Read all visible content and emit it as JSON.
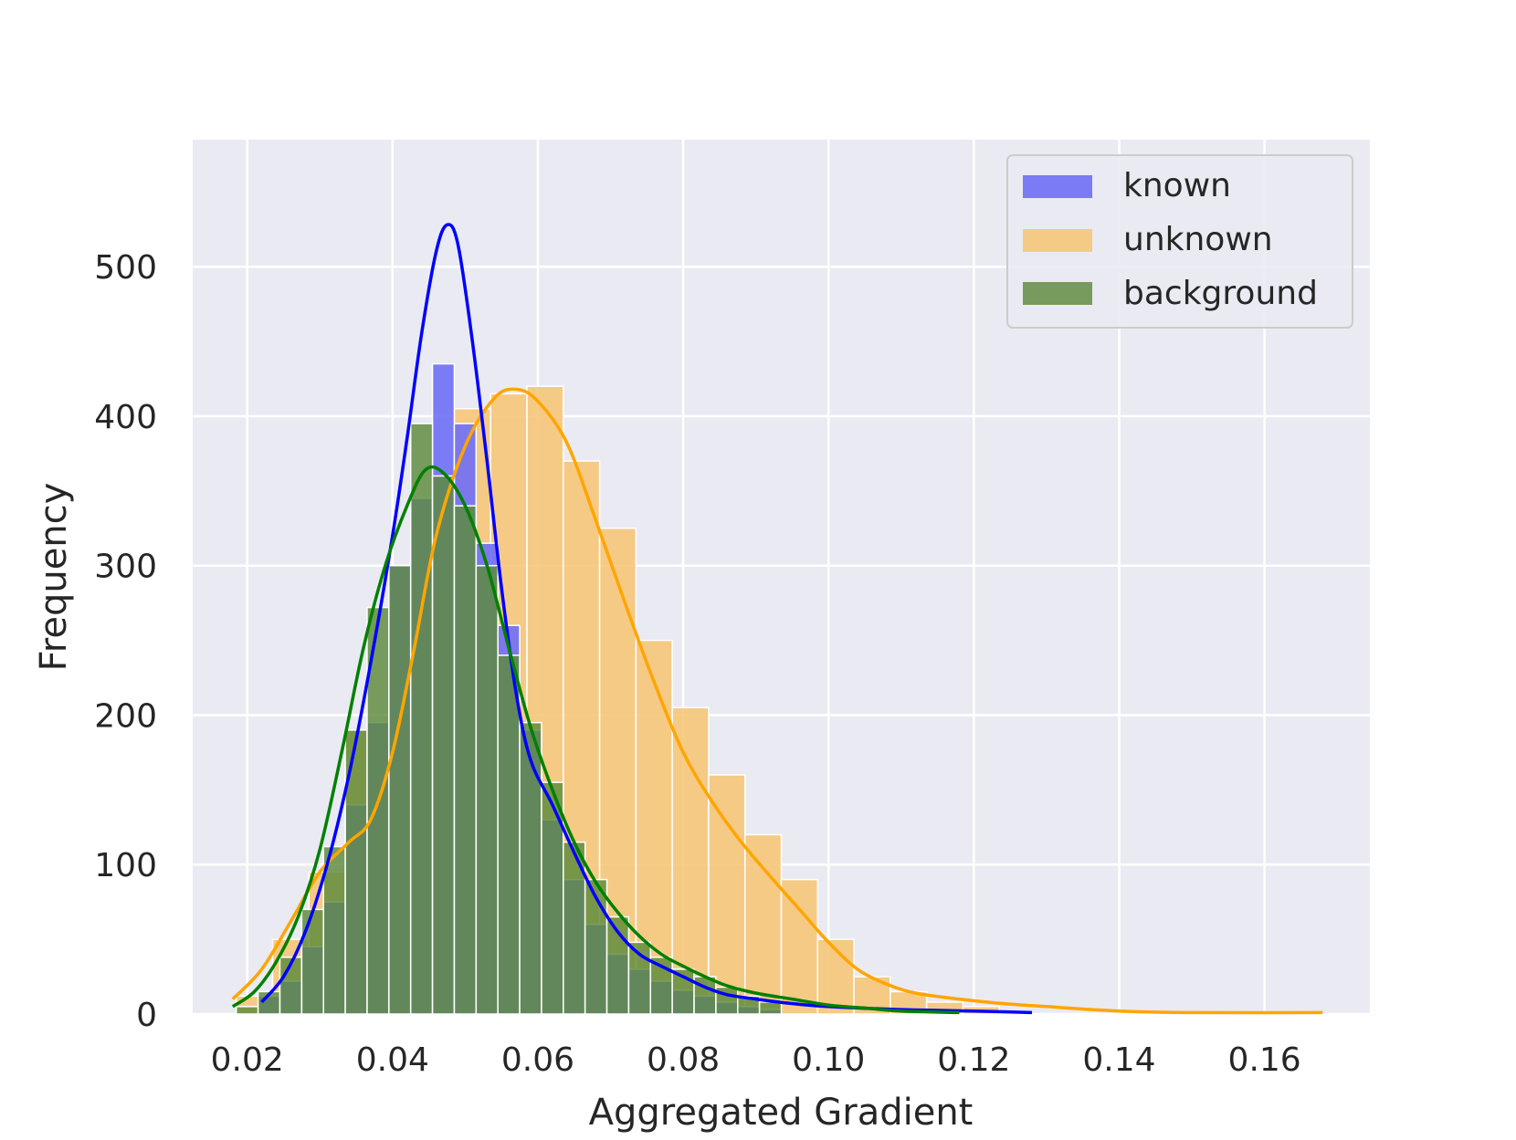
{
  "chart_data": {
    "type": "bar",
    "subtype": "overlaid-histogram-with-kde",
    "xlabel": "Aggregated Gradient",
    "ylabel": "Frequency",
    "xlim": [
      0.0125,
      0.1745
    ],
    "ylim": [
      0,
      585
    ],
    "xticks": [
      0.02,
      0.04,
      0.06,
      0.08,
      0.1,
      0.12,
      0.14,
      0.16
    ],
    "xtick_labels": [
      "0.02",
      "0.04",
      "0.06",
      "0.08",
      "0.10",
      "0.12",
      "0.14",
      "0.16"
    ],
    "yticks": [
      0,
      100,
      200,
      300,
      400,
      500
    ],
    "ytick_labels": [
      "0",
      "100",
      "200",
      "300",
      "400",
      "500"
    ],
    "grid": true,
    "legend_position": "top-right",
    "colors": {
      "plot_background": "#eaeaf2",
      "grid": "#ffffff",
      "text": "#262626",
      "legend_frame": "#cccccc"
    },
    "series": [
      {
        "name": "known",
        "bar_color": "#6f6ff6",
        "line_color": "#0000ff",
        "bars": [
          {
            "x0": 0.0215,
            "x1": 0.0245,
            "value": 12
          },
          {
            "x0": 0.0245,
            "x1": 0.0275,
            "value": 22
          },
          {
            "x0": 0.0275,
            "x1": 0.0305,
            "value": 45
          },
          {
            "x0": 0.0305,
            "x1": 0.0335,
            "value": 75
          },
          {
            "x0": 0.0335,
            "x1": 0.0365,
            "value": 140
          },
          {
            "x0": 0.0365,
            "x1": 0.0395,
            "value": 195
          },
          {
            "x0": 0.0395,
            "x1": 0.0425,
            "value": 300
          },
          {
            "x0": 0.0425,
            "x1": 0.0455,
            "value": 345
          },
          {
            "x0": 0.0455,
            "x1": 0.0485,
            "value": 435
          },
          {
            "x0": 0.0485,
            "x1": 0.0515,
            "value": 395
          },
          {
            "x0": 0.0515,
            "x1": 0.0545,
            "value": 315
          },
          {
            "x0": 0.0545,
            "x1": 0.0575,
            "value": 260
          },
          {
            "x0": 0.0575,
            "x1": 0.0605,
            "value": 190
          },
          {
            "x0": 0.0605,
            "x1": 0.0635,
            "value": 130
          },
          {
            "x0": 0.0635,
            "x1": 0.0665,
            "value": 90
          },
          {
            "x0": 0.0665,
            "x1": 0.0695,
            "value": 60
          },
          {
            "x0": 0.0695,
            "x1": 0.0725,
            "value": 40
          },
          {
            "x0": 0.0725,
            "x1": 0.0755,
            "value": 30
          },
          {
            "x0": 0.0755,
            "x1": 0.0785,
            "value": 22
          },
          {
            "x0": 0.0785,
            "x1": 0.0815,
            "value": 16
          },
          {
            "x0": 0.0815,
            "x1": 0.0845,
            "value": 12
          },
          {
            "x0": 0.0845,
            "x1": 0.0875,
            "value": 8
          },
          {
            "x0": 0.0875,
            "x1": 0.0905,
            "value": 5
          },
          {
            "x0": 0.0905,
            "x1": 0.0935,
            "value": 3
          }
        ],
        "kde": [
          [
            0.022,
            8
          ],
          [
            0.025,
            25
          ],
          [
            0.028,
            55
          ],
          [
            0.031,
            100
          ],
          [
            0.034,
            160
          ],
          [
            0.037,
            235
          ],
          [
            0.04,
            320
          ],
          [
            0.042,
            385
          ],
          [
            0.044,
            455
          ],
          [
            0.046,
            510
          ],
          [
            0.0475,
            528
          ],
          [
            0.049,
            515
          ],
          [
            0.051,
            450
          ],
          [
            0.053,
            370
          ],
          [
            0.055,
            285
          ],
          [
            0.057,
            215
          ],
          [
            0.059,
            170
          ],
          [
            0.062,
            140
          ],
          [
            0.065,
            108
          ],
          [
            0.068,
            78
          ],
          [
            0.071,
            55
          ],
          [
            0.074,
            40
          ],
          [
            0.077,
            32
          ],
          [
            0.08,
            25
          ],
          [
            0.083,
            18
          ],
          [
            0.086,
            13
          ],
          [
            0.09,
            10
          ],
          [
            0.095,
            7
          ],
          [
            0.1,
            5
          ],
          [
            0.11,
            3
          ],
          [
            0.12,
            2
          ],
          [
            0.128,
            1
          ]
        ]
      },
      {
        "name": "unknown",
        "bar_color": "#f6c679",
        "line_color": "#ffa500",
        "bars": [
          {
            "x0": 0.0185,
            "x1": 0.0235,
            "value": 12
          },
          {
            "x0": 0.0235,
            "x1": 0.0285,
            "value": 50
          },
          {
            "x0": 0.0285,
            "x1": 0.0335,
            "value": 95
          },
          {
            "x0": 0.0335,
            "x1": 0.0385,
            "value": 190
          },
          {
            "x0": 0.0385,
            "x1": 0.0435,
            "value": 160
          },
          {
            "x0": 0.0435,
            "x1": 0.0485,
            "value": 285
          },
          {
            "x0": 0.0485,
            "x1": 0.0535,
            "value": 405
          },
          {
            "x0": 0.0535,
            "x1": 0.0585,
            "value": 415
          },
          {
            "x0": 0.0585,
            "x1": 0.0635,
            "value": 420
          },
          {
            "x0": 0.0635,
            "x1": 0.0685,
            "value": 370
          },
          {
            "x0": 0.0685,
            "x1": 0.0735,
            "value": 325
          },
          {
            "x0": 0.0735,
            "x1": 0.0785,
            "value": 250
          },
          {
            "x0": 0.0785,
            "x1": 0.0835,
            "value": 205
          },
          {
            "x0": 0.0835,
            "x1": 0.0885,
            "value": 160
          },
          {
            "x0": 0.0885,
            "x1": 0.0935,
            "value": 120
          },
          {
            "x0": 0.0935,
            "x1": 0.0985,
            "value": 90
          },
          {
            "x0": 0.0985,
            "x1": 0.1035,
            "value": 50
          },
          {
            "x0": 0.1035,
            "x1": 0.1085,
            "value": 25
          },
          {
            "x0": 0.1085,
            "x1": 0.1135,
            "value": 15
          },
          {
            "x0": 0.1135,
            "x1": 0.1185,
            "value": 8
          },
          {
            "x0": 0.1185,
            "x1": 0.1235,
            "value": 5
          }
        ],
        "kde": [
          [
            0.018,
            10
          ],
          [
            0.022,
            30
          ],
          [
            0.026,
            62
          ],
          [
            0.03,
            95
          ],
          [
            0.034,
            115
          ],
          [
            0.037,
            130
          ],
          [
            0.04,
            175
          ],
          [
            0.043,
            245
          ],
          [
            0.046,
            320
          ],
          [
            0.05,
            380
          ],
          [
            0.054,
            412
          ],
          [
            0.057,
            418
          ],
          [
            0.06,
            410
          ],
          [
            0.064,
            382
          ],
          [
            0.068,
            330
          ],
          [
            0.072,
            275
          ],
          [
            0.076,
            222
          ],
          [
            0.08,
            175
          ],
          [
            0.084,
            142
          ],
          [
            0.088,
            115
          ],
          [
            0.092,
            92
          ],
          [
            0.096,
            70
          ],
          [
            0.1,
            48
          ],
          [
            0.104,
            30
          ],
          [
            0.108,
            20
          ],
          [
            0.112,
            14
          ],
          [
            0.118,
            10
          ],
          [
            0.124,
            7
          ],
          [
            0.13,
            5
          ],
          [
            0.14,
            2
          ],
          [
            0.15,
            1
          ],
          [
            0.168,
            1
          ]
        ]
      },
      {
        "name": "background",
        "bar_color": "#5d8a3a",
        "line_color": "#008000",
        "bars": [
          {
            "x0": 0.0185,
            "x1": 0.0215,
            "value": 5
          },
          {
            "x0": 0.0215,
            "x1": 0.0245,
            "value": 15
          },
          {
            "x0": 0.0245,
            "x1": 0.0275,
            "value": 38
          },
          {
            "x0": 0.0275,
            "x1": 0.0305,
            "value": 70
          },
          {
            "x0": 0.0305,
            "x1": 0.0335,
            "value": 112
          },
          {
            "x0": 0.0335,
            "x1": 0.0365,
            "value": 190
          },
          {
            "x0": 0.0365,
            "x1": 0.0395,
            "value": 272
          },
          {
            "x0": 0.0395,
            "x1": 0.0425,
            "value": 300
          },
          {
            "x0": 0.0425,
            "x1": 0.0455,
            "value": 395
          },
          {
            "x0": 0.0455,
            "x1": 0.0485,
            "value": 360
          },
          {
            "x0": 0.0485,
            "x1": 0.0515,
            "value": 340
          },
          {
            "x0": 0.0515,
            "x1": 0.0545,
            "value": 300
          },
          {
            "x0": 0.0545,
            "x1": 0.0575,
            "value": 240
          },
          {
            "x0": 0.0575,
            "x1": 0.0605,
            "value": 195
          },
          {
            "x0": 0.0605,
            "x1": 0.0635,
            "value": 155
          },
          {
            "x0": 0.0635,
            "x1": 0.0665,
            "value": 115
          },
          {
            "x0": 0.0665,
            "x1": 0.0695,
            "value": 90
          },
          {
            "x0": 0.0695,
            "x1": 0.0725,
            "value": 65
          },
          {
            "x0": 0.0725,
            "x1": 0.0755,
            "value": 48
          },
          {
            "x0": 0.0755,
            "x1": 0.0785,
            "value": 38
          },
          {
            "x0": 0.0785,
            "x1": 0.0815,
            "value": 30
          },
          {
            "x0": 0.0815,
            "x1": 0.0845,
            "value": 25
          },
          {
            "x0": 0.0845,
            "x1": 0.0875,
            "value": 18
          },
          {
            "x0": 0.0875,
            "x1": 0.0905,
            "value": 12
          },
          {
            "x0": 0.0905,
            "x1": 0.0935,
            "value": 8
          }
        ],
        "kde": [
          [
            0.018,
            5
          ],
          [
            0.021,
            15
          ],
          [
            0.024,
            35
          ],
          [
            0.027,
            65
          ],
          [
            0.03,
            110
          ],
          [
            0.033,
            175
          ],
          [
            0.036,
            245
          ],
          [
            0.039,
            300
          ],
          [
            0.042,
            340
          ],
          [
            0.0445,
            364
          ],
          [
            0.047,
            362
          ],
          [
            0.05,
            340
          ],
          [
            0.053,
            300
          ],
          [
            0.056,
            245
          ],
          [
            0.059,
            192
          ],
          [
            0.062,
            150
          ],
          [
            0.065,
            115
          ],
          [
            0.068,
            88
          ],
          [
            0.071,
            68
          ],
          [
            0.074,
            52
          ],
          [
            0.077,
            40
          ],
          [
            0.08,
            32
          ],
          [
            0.083,
            25
          ],
          [
            0.086,
            19
          ],
          [
            0.09,
            14
          ],
          [
            0.095,
            10
          ],
          [
            0.1,
            6
          ],
          [
            0.105,
            4
          ],
          [
            0.11,
            2
          ],
          [
            0.118,
            1
          ]
        ]
      }
    ]
  }
}
